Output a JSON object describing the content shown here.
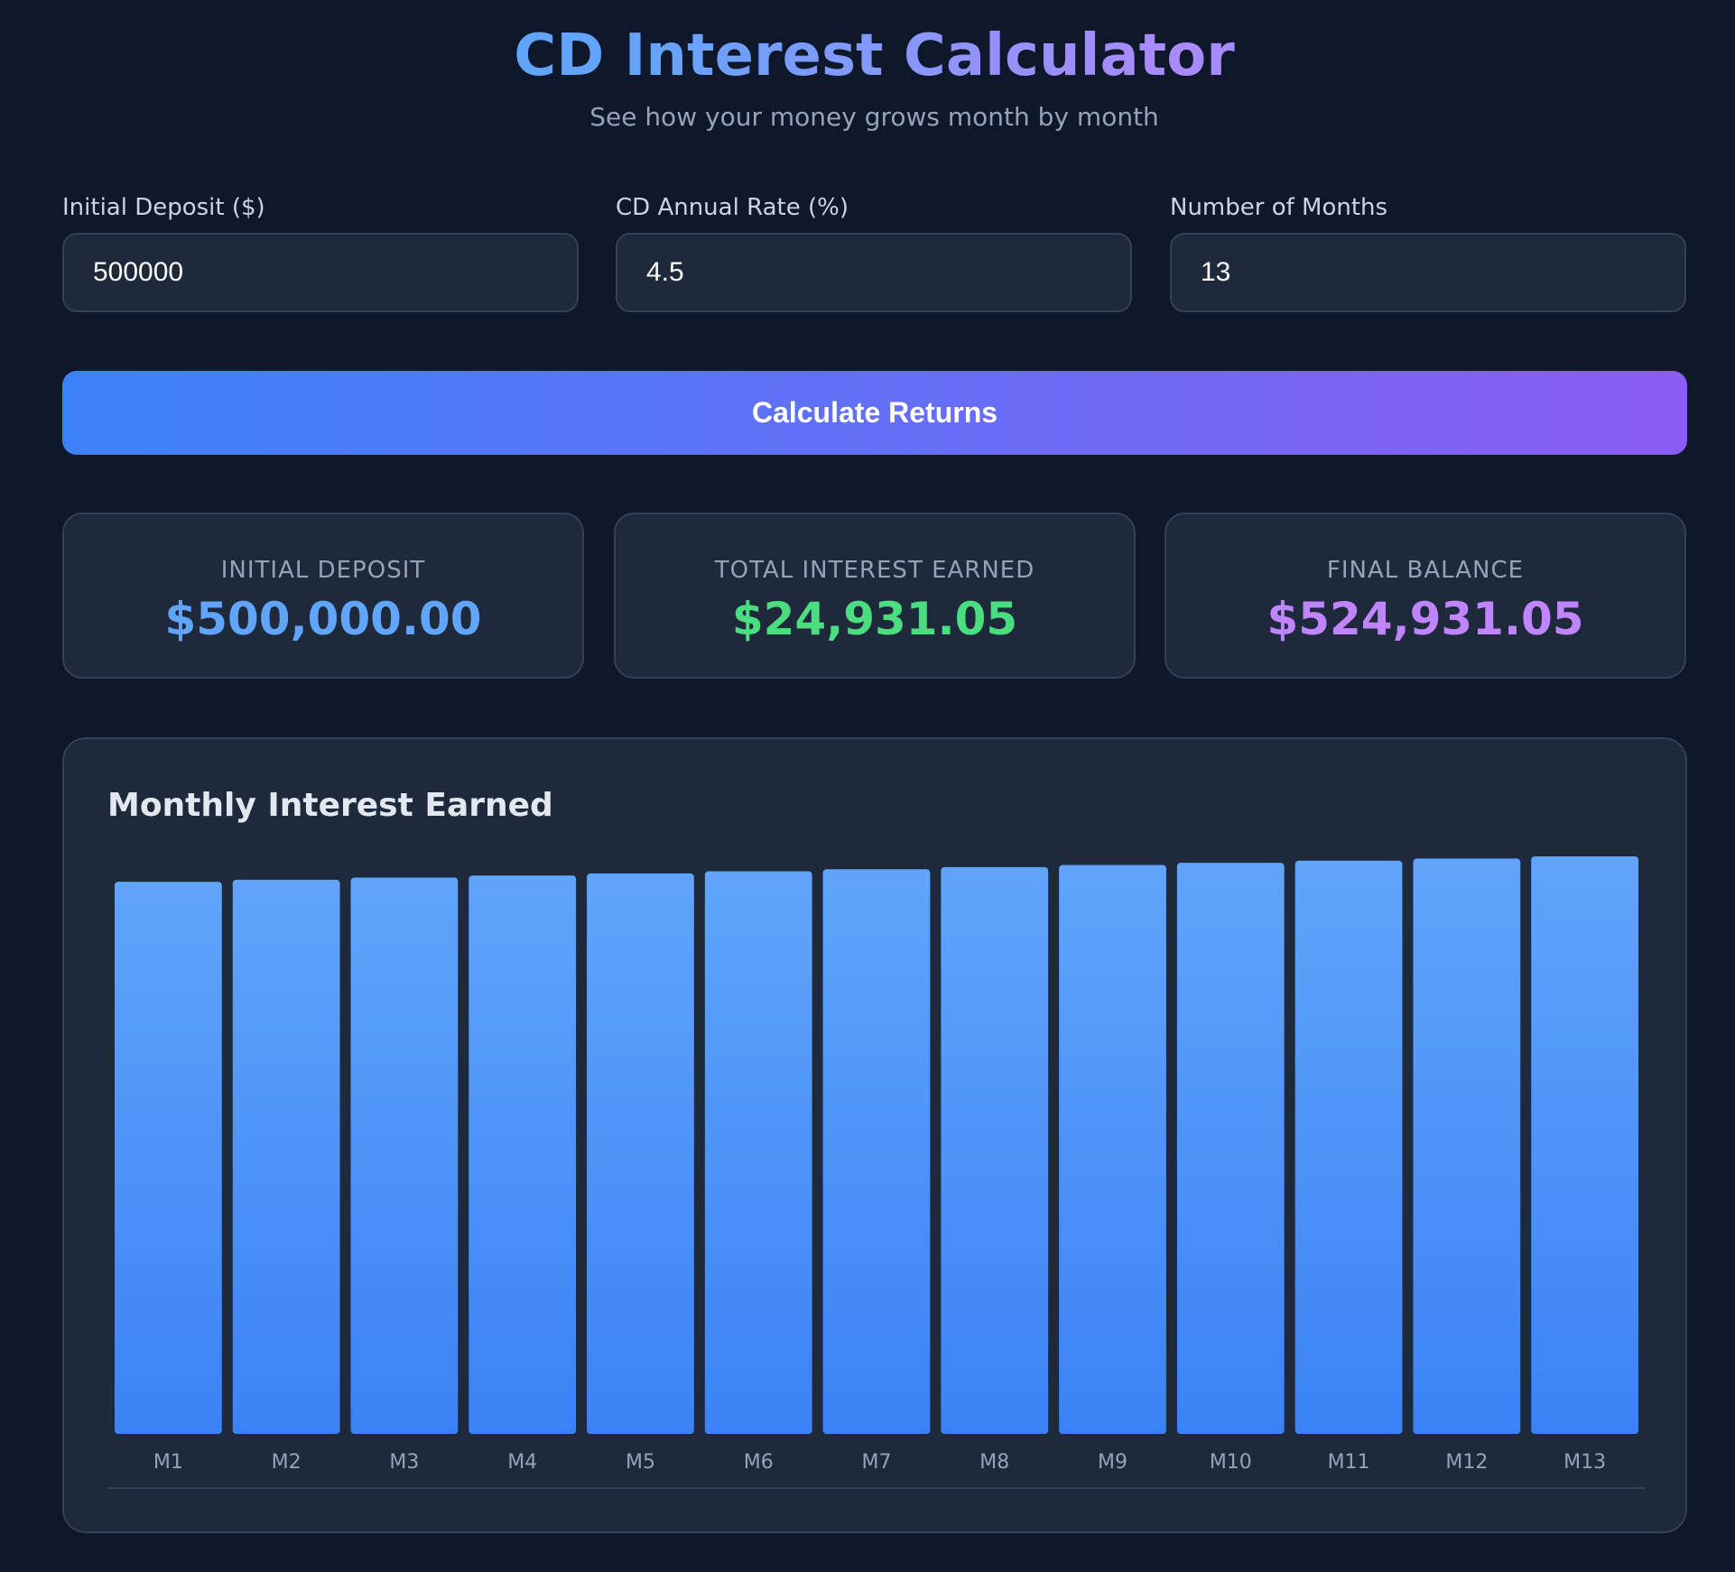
{
  "header": {
    "title": "CD Interest Calculator",
    "subtitle": "See how your money grows month by month"
  },
  "form": {
    "deposit": {
      "label": "Initial Deposit ($)",
      "value": "500000"
    },
    "rate": {
      "label": "CD Annual Rate (%)",
      "value": "4.5"
    },
    "months": {
      "label": "Number of Months",
      "value": "13"
    },
    "button_label": "Calculate Returns"
  },
  "summary": {
    "initial": {
      "label": "INITIAL DEPOSIT",
      "value": "$500,000.00",
      "color": "#60a5fa"
    },
    "interest": {
      "label": "TOTAL INTEREST EARNED",
      "value": "$24,931.05",
      "color": "#4ade80"
    },
    "final": {
      "label": "FINAL BALANCE",
      "value": "$524,931.05",
      "color": "#c084fc"
    }
  },
  "chart_data": {
    "type": "bar",
    "title": "Monthly Interest Earned",
    "categories": [
      "M1",
      "M2",
      "M3",
      "M4",
      "M5",
      "M6",
      "M7",
      "M8",
      "M9",
      "M10",
      "M11",
      "M12",
      "M13"
    ],
    "values": [
      1875.0,
      1882.03,
      1889.09,
      1896.17,
      1903.28,
      1910.42,
      1917.59,
      1924.78,
      1932.0,
      1939.24,
      1946.51,
      1953.81,
      1961.14
    ],
    "ylim": [
      0,
      1961.14
    ],
    "grid": false,
    "colors": {
      "bar_top": "#60a5fa",
      "bar_bottom": "#3b82f6"
    }
  }
}
